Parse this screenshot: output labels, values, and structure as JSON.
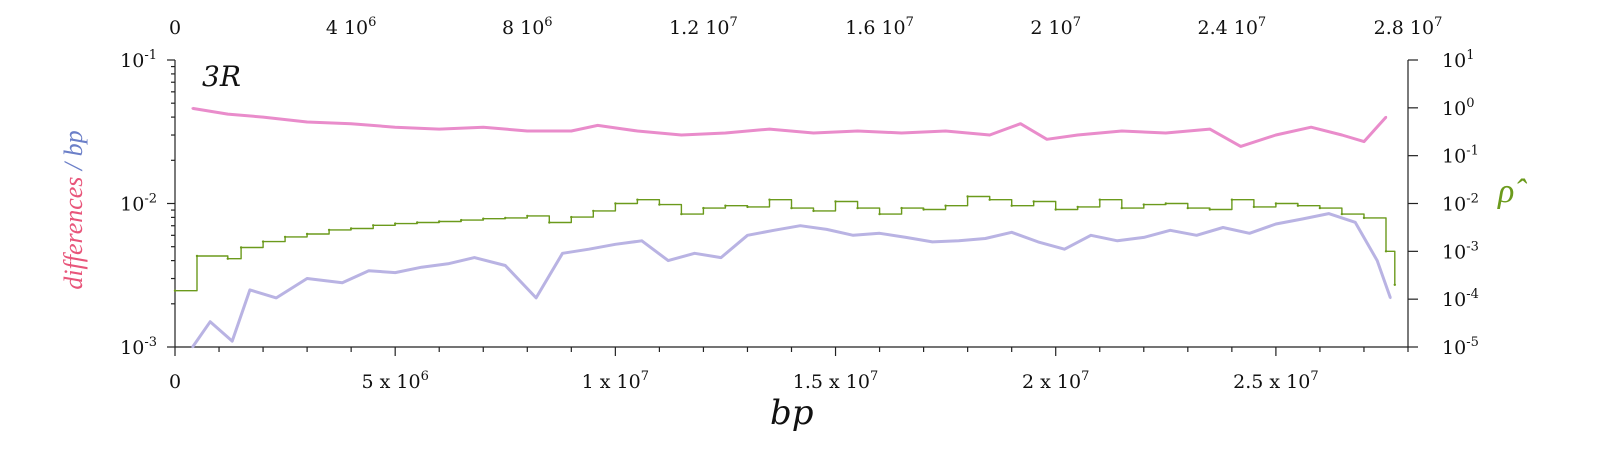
{
  "chart_data": {
    "type": "line",
    "title": "3R",
    "xlabel": "bp",
    "ylabel": [
      "differences",
      " / ",
      "bp"
    ],
    "y2label": "ρ̂",
    "xlim": [
      0,
      28000000
    ],
    "ylim": [
      0.001,
      0.1
    ],
    "y2lim": [
      1e-05,
      10
    ],
    "log_y": true,
    "log_y2": true,
    "grid": false,
    "colors": {
      "ylabel_differences": "#e8557a",
      "ylabel_sep": "#6b7fc8",
      "ylabel_bp": "#6b7fc8",
      "rho": "#6b9a1c",
      "pink_series": "#e98ccb",
      "lavender_series": "#b9b3e3"
    },
    "x_ticks_bottom": [
      {
        "base": "0",
        "exp": ""
      },
      {
        "base": "5 x 10",
        "exp": "6"
      },
      {
        "base": "1 x 10",
        "exp": "7"
      },
      {
        "base": "1.5 x 10",
        "exp": "7"
      },
      {
        "base": "2 x 10",
        "exp": "7"
      },
      {
        "base": "2.5 x 10",
        "exp": "7"
      }
    ],
    "x_tick_values_bottom": [
      0,
      5000000,
      10000000,
      15000000,
      20000000,
      25000000
    ],
    "x_ticks_top": [
      {
        "base": "0",
        "exp": ""
      },
      {
        "base": "4 10",
        "exp": "6"
      },
      {
        "base": "8 10",
        "exp": "6"
      },
      {
        "base": "1.2 10",
        "exp": "7"
      },
      {
        "base": "1.6 10",
        "exp": "7"
      },
      {
        "base": "2 10",
        "exp": "7"
      },
      {
        "base": "2.4 10",
        "exp": "7"
      },
      {
        "base": "2.8 10",
        "exp": "7"
      }
    ],
    "x_tick_values_top": [
      0,
      4000000,
      8000000,
      12000000,
      16000000,
      20000000,
      24000000,
      28000000
    ],
    "y_ticks_left": [
      {
        "base": "10",
        "exp": "-1",
        "value": 0.1
      },
      {
        "base": "10",
        "exp": "-2",
        "value": 0.01
      },
      {
        "base": "10",
        "exp": "-3",
        "value": 0.001
      }
    ],
    "y_ticks_right": [
      {
        "base": "10",
        "exp": "1",
        "value": 10
      },
      {
        "base": "10",
        "exp": "0",
        "value": 1
      },
      {
        "base": "10",
        "exp": "-1",
        "value": 0.1
      },
      {
        "base": "10",
        "exp": "-2",
        "value": 0.01
      },
      {
        "base": "10",
        "exp": "-3",
        "value": 0.001
      },
      {
        "base": "10",
        "exp": "-4",
        "value": 0.0001
      },
      {
        "base": "10",
        "exp": "-5",
        "value": 1e-05
      }
    ],
    "series": [
      {
        "axis": "left",
        "color": "#e98ccb",
        "x": [
          400000,
          1200000,
          2000000,
          3000000,
          4000000,
          5000000,
          6000000,
          7000000,
          8000000,
          9000000,
          9600000,
          10500000,
          11500000,
          12500000,
          13500000,
          14500000,
          15500000,
          16500000,
          17500000,
          18500000,
          19200000,
          19800000,
          20500000,
          21500000,
          22500000,
          23500000,
          24200000,
          25000000,
          25800000,
          26500000,
          27000000,
          27500000
        ],
        "y": [
          0.046,
          0.042,
          0.04,
          0.037,
          0.036,
          0.034,
          0.033,
          0.034,
          0.032,
          0.032,
          0.035,
          0.032,
          0.03,
          0.031,
          0.033,
          0.031,
          0.032,
          0.031,
          0.032,
          0.03,
          0.036,
          0.028,
          0.03,
          0.032,
          0.031,
          0.033,
          0.025,
          0.03,
          0.034,
          0.03,
          0.027,
          0.04
        ]
      },
      {
        "axis": "left",
        "color": "#b9b3e3",
        "x": [
          400000,
          800000,
          1300000,
          1700000,
          2300000,
          3000000,
          3800000,
          4400000,
          5000000,
          5600000,
          6200000,
          6800000,
          7500000,
          8200000,
          8800000,
          9400000,
          10000000,
          10600000,
          11200000,
          11800000,
          12400000,
          13000000,
          13600000,
          14200000,
          14800000,
          15400000,
          16000000,
          16600000,
          17200000,
          17800000,
          18400000,
          19000000,
          19600000,
          20200000,
          20800000,
          21400000,
          22000000,
          22600000,
          23200000,
          23800000,
          24400000,
          25000000,
          25600000,
          26200000,
          26800000,
          27300000,
          27600000
        ],
        "y": [
          0.001,
          0.0015,
          0.0011,
          0.0025,
          0.0022,
          0.003,
          0.0028,
          0.0034,
          0.0033,
          0.0036,
          0.0038,
          0.0042,
          0.0037,
          0.0022,
          0.0045,
          0.0048,
          0.0052,
          0.0055,
          0.004,
          0.0045,
          0.0042,
          0.006,
          0.0065,
          0.007,
          0.0066,
          0.006,
          0.0062,
          0.0058,
          0.0054,
          0.0055,
          0.0057,
          0.0063,
          0.0054,
          0.0048,
          0.006,
          0.0055,
          0.0058,
          0.0065,
          0.006,
          0.0068,
          0.0062,
          0.0072,
          0.0078,
          0.0085,
          0.0074,
          0.004,
          0.0022
        ]
      },
      {
        "axis": "right",
        "color": "#6b9a1c",
        "x": [
          0,
          500000,
          1200000,
          1500000,
          2000000,
          2500000,
          3000000,
          3500000,
          4000000,
          4500000,
          5000000,
          5500000,
          6000000,
          6500000,
          7000000,
          7500000,
          8000000,
          8500000,
          9000000,
          9500000,
          10000000,
          10500000,
          11000000,
          11500000,
          12000000,
          12500000,
          13000000,
          13500000,
          14000000,
          14500000,
          15000000,
          15500000,
          16000000,
          16500000,
          17000000,
          17500000,
          18000000,
          18500000,
          19000000,
          19500000,
          20000000,
          20500000,
          21000000,
          21500000,
          22000000,
          22500000,
          23000000,
          23500000,
          24000000,
          24500000,
          25000000,
          25500000,
          26000000,
          26500000,
          27000000,
          27500000,
          27700000
        ],
        "y": [
          0.00015,
          0.0008,
          0.0007,
          0.0012,
          0.0016,
          0.002,
          0.0023,
          0.0028,
          0.003,
          0.0035,
          0.0038,
          0.004,
          0.0042,
          0.0045,
          0.0048,
          0.005,
          0.0055,
          0.004,
          0.0052,
          0.007,
          0.01,
          0.012,
          0.0095,
          0.006,
          0.008,
          0.009,
          0.0085,
          0.012,
          0.008,
          0.007,
          0.011,
          0.008,
          0.006,
          0.008,
          0.0075,
          0.009,
          0.014,
          0.012,
          0.009,
          0.011,
          0.0075,
          0.0085,
          0.012,
          0.008,
          0.0095,
          0.01,
          0.008,
          0.0075,
          0.012,
          0.0085,
          0.01,
          0.009,
          0.008,
          0.006,
          0.005,
          0.001,
          0.0002
        ]
      }
    ]
  }
}
